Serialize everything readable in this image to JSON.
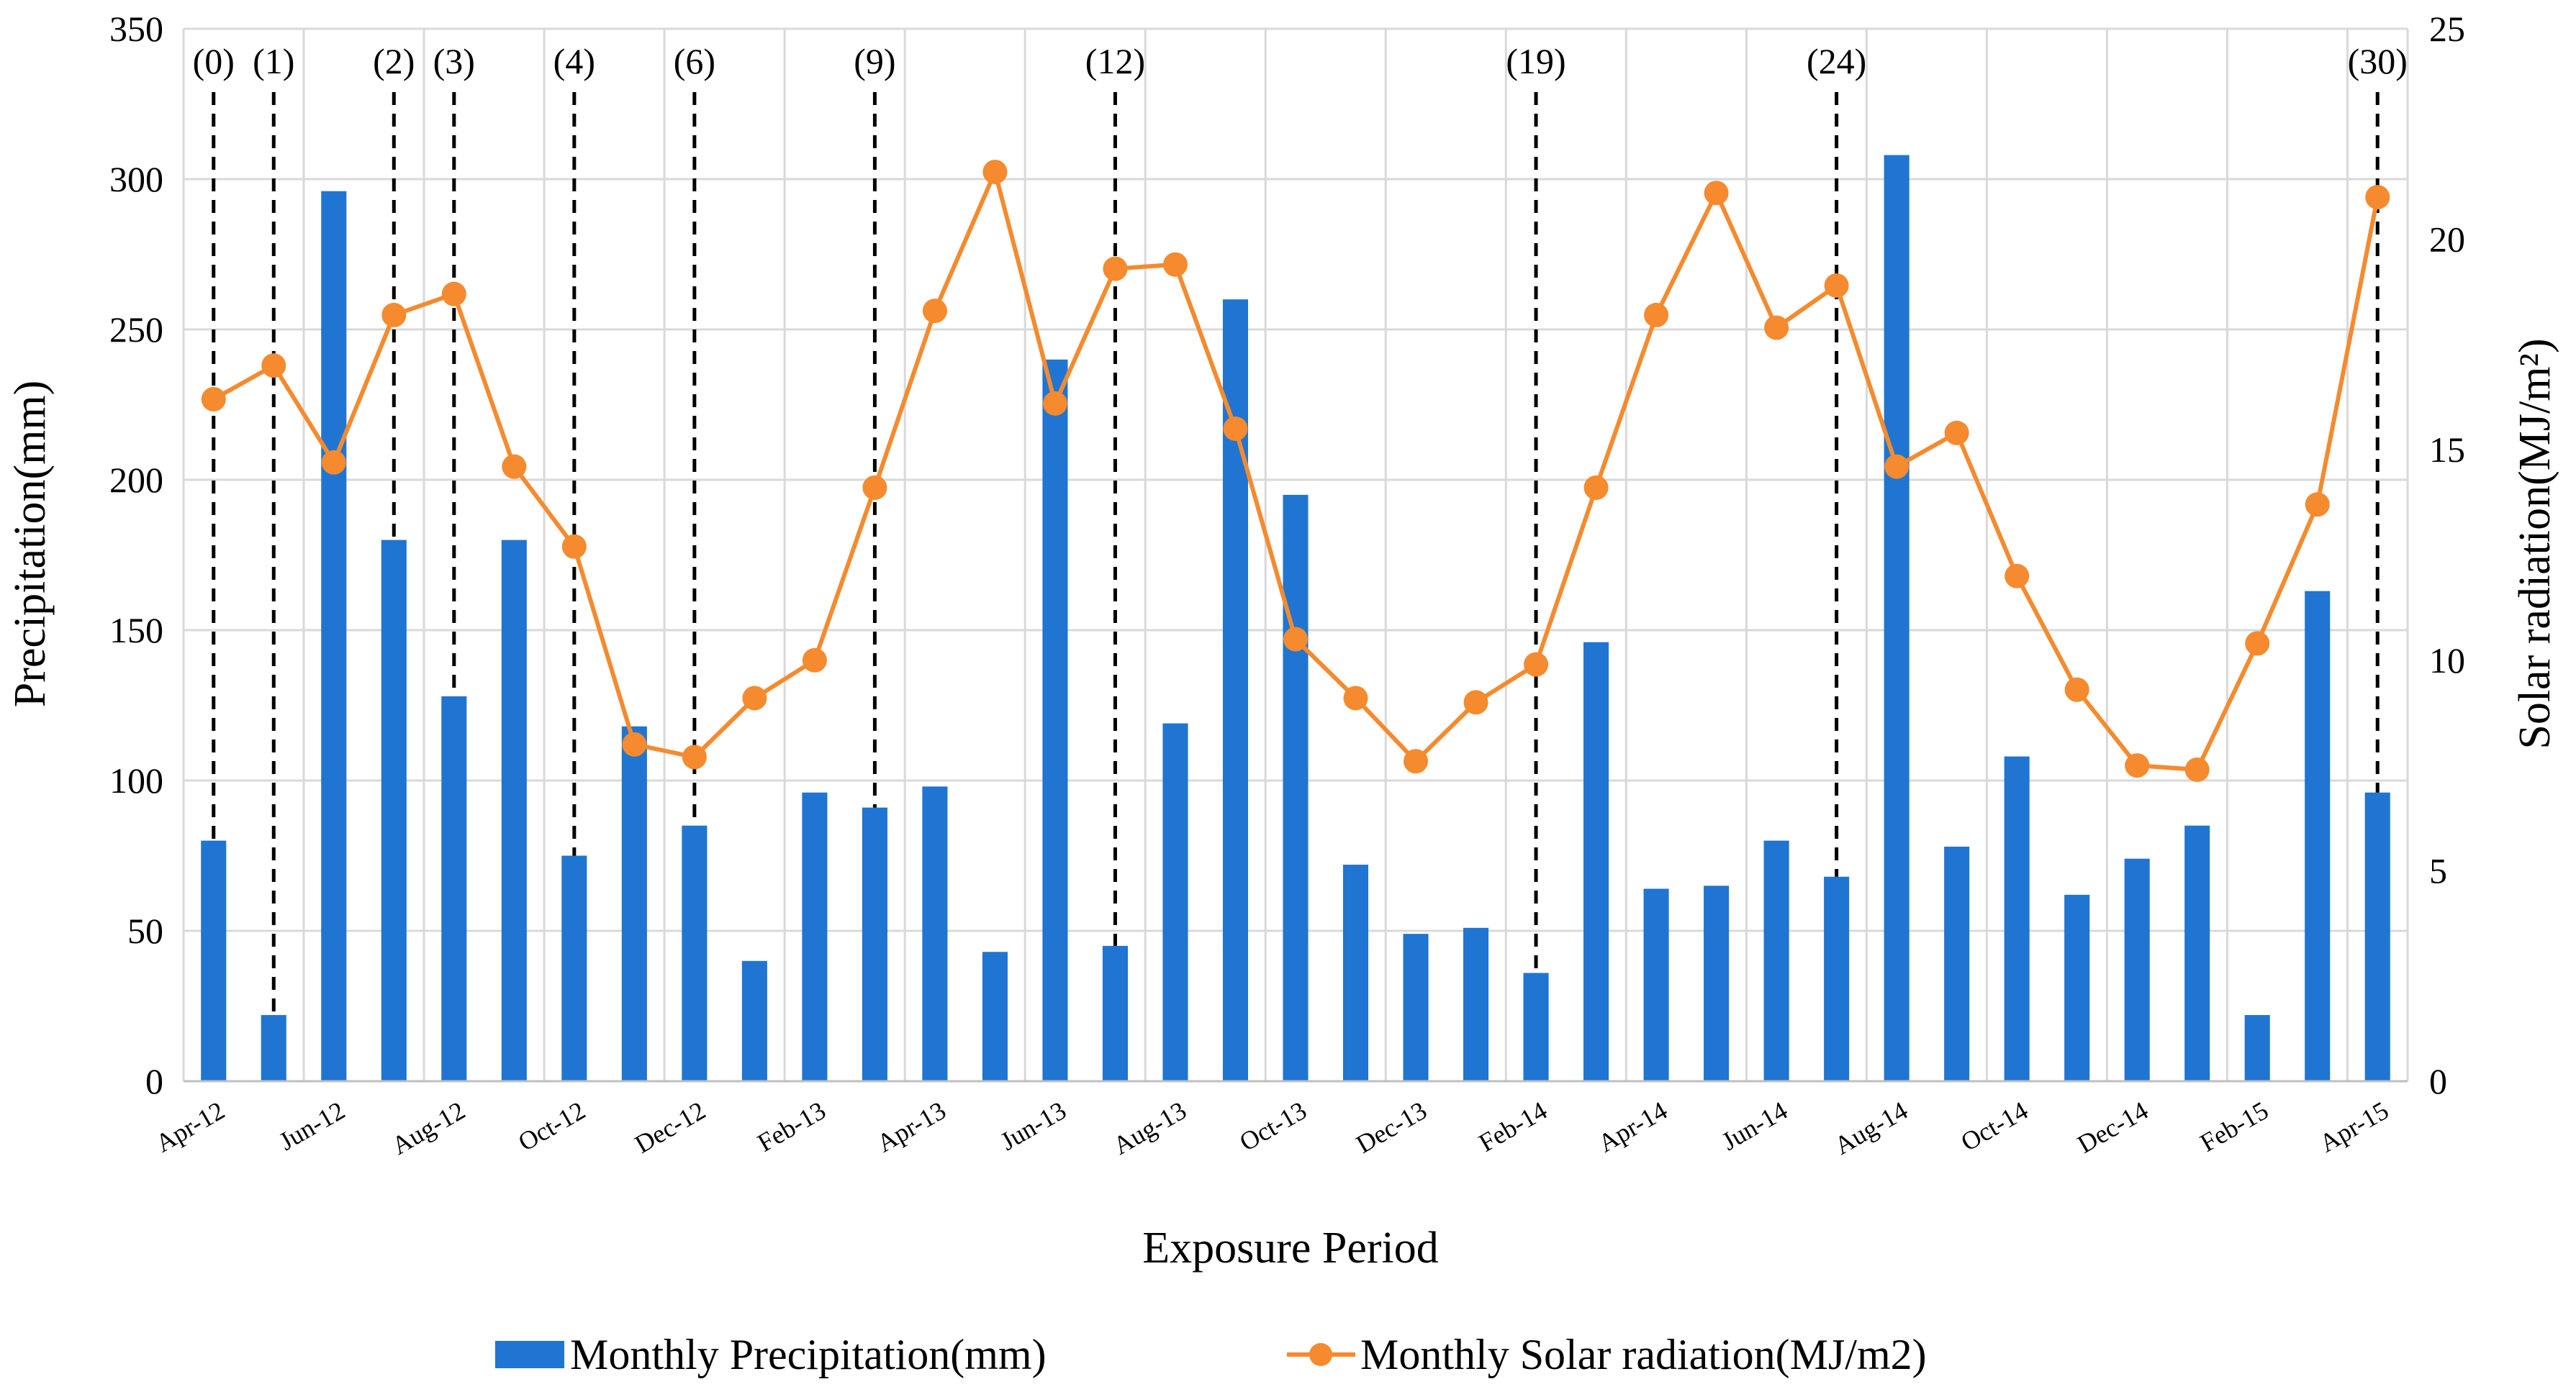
{
  "chart_data": {
    "type": "bar",
    "title": "",
    "xlabel": "Exposure Period",
    "ylabel": "Precipitation(mm)",
    "y2label": "Solar radiation(MJ/m²)",
    "ylim": [
      0,
      350
    ],
    "y2lim": [
      0,
      25
    ],
    "yticks": [
      "0",
      "50",
      "100",
      "150",
      "200",
      "250",
      "300",
      "350"
    ],
    "y2ticks": [
      "0",
      "5",
      "10",
      "15",
      "20",
      "25"
    ],
    "grid": true,
    "legend_position": "bottom",
    "categories": [
      "Apr-12",
      "May-12",
      "Jun-12",
      "Jul-12",
      "Aug-12",
      "Sep-12",
      "Oct-12",
      "Nov-12",
      "Dec-12",
      "Jan-13",
      "Feb-13",
      "Mar-13",
      "Apr-13",
      "May-13",
      "Jun-13",
      "Jul-13",
      "Aug-13",
      "Sep-13",
      "Oct-13",
      "Nov-13",
      "Dec-13",
      "Jan-14",
      "Feb-14",
      "Mar-14",
      "Apr-14",
      "May-14",
      "Jun-14",
      "Jul-14",
      "Aug-14",
      "Sep-14",
      "Oct-14",
      "Nov-14",
      "Dec-14",
      "Jan-15",
      "Feb-15",
      "Mar-15",
      "Apr-15"
    ],
    "x_tick_labels": [
      "Apr-12",
      "Jun-12",
      "Aug-12",
      "Oct-12",
      "Dec-12",
      "Feb-13",
      "Apr-13",
      "Jun-13",
      "Aug-13",
      "Oct-13",
      "Dec-13",
      "Feb-14",
      "Apr-14",
      "Jun-14",
      "Aug-14",
      "Oct-14",
      "Dec-14",
      "Feb-15",
      "Apr-15"
    ],
    "series": [
      {
        "name": "Monthly Precipitation(mm)",
        "type": "bar",
        "axis": "left",
        "color": "#1f75d1",
        "values": [
          80,
          22,
          296,
          180,
          128,
          180,
          75,
          118,
          85,
          40,
          96,
          91,
          98,
          43,
          240,
          45,
          119,
          260,
          195,
          72,
          49,
          51,
          36,
          146,
          64,
          65,
          80,
          68,
          308,
          78,
          108,
          62,
          74,
          85,
          22,
          163,
          96
        ]
      },
      {
        "name": "Monthly Solar radiation(MJ/m2)",
        "type": "line",
        "axis": "right",
        "color": "#f58a2e",
        "values": [
          16.2,
          17.0,
          14.7,
          18.2,
          18.7,
          14.6,
          12.7,
          8.0,
          7.7,
          9.1,
          10.0,
          14.1,
          18.3,
          21.6,
          16.1,
          19.3,
          19.4,
          15.5,
          10.5,
          9.1,
          7.6,
          9.0,
          9.9,
          14.1,
          18.2,
          21.1,
          17.9,
          18.9,
          14.6,
          15.4,
          12.0,
          9.3,
          7.5,
          7.4,
          10.4,
          13.7,
          21.0
        ]
      }
    ],
    "annotations": [
      {
        "label": "(0)",
        "category": "Apr-12",
        "value": 80
      },
      {
        "label": "(1)",
        "category": "May-12",
        "value": 22
      },
      {
        "label": "(2)",
        "category": "Jul-12",
        "value": 180
      },
      {
        "label": "(3)",
        "category": "Aug-12",
        "value": 128
      },
      {
        "label": "(4)",
        "category": "Oct-12",
        "value": 75
      },
      {
        "label": "(6)",
        "category": "Dec-12",
        "value": 85
      },
      {
        "label": "(9)",
        "category": "Mar-13",
        "value": 91
      },
      {
        "label": "(12)",
        "category": "Jul-13",
        "value": 45
      },
      {
        "label": "(19)",
        "category": "Feb-14",
        "value": 36
      },
      {
        "label": "(24)",
        "category": "Jul-14",
        "value": 68
      },
      {
        "label": "(30)",
        "category": "Apr-15",
        "value": 96
      }
    ]
  }
}
